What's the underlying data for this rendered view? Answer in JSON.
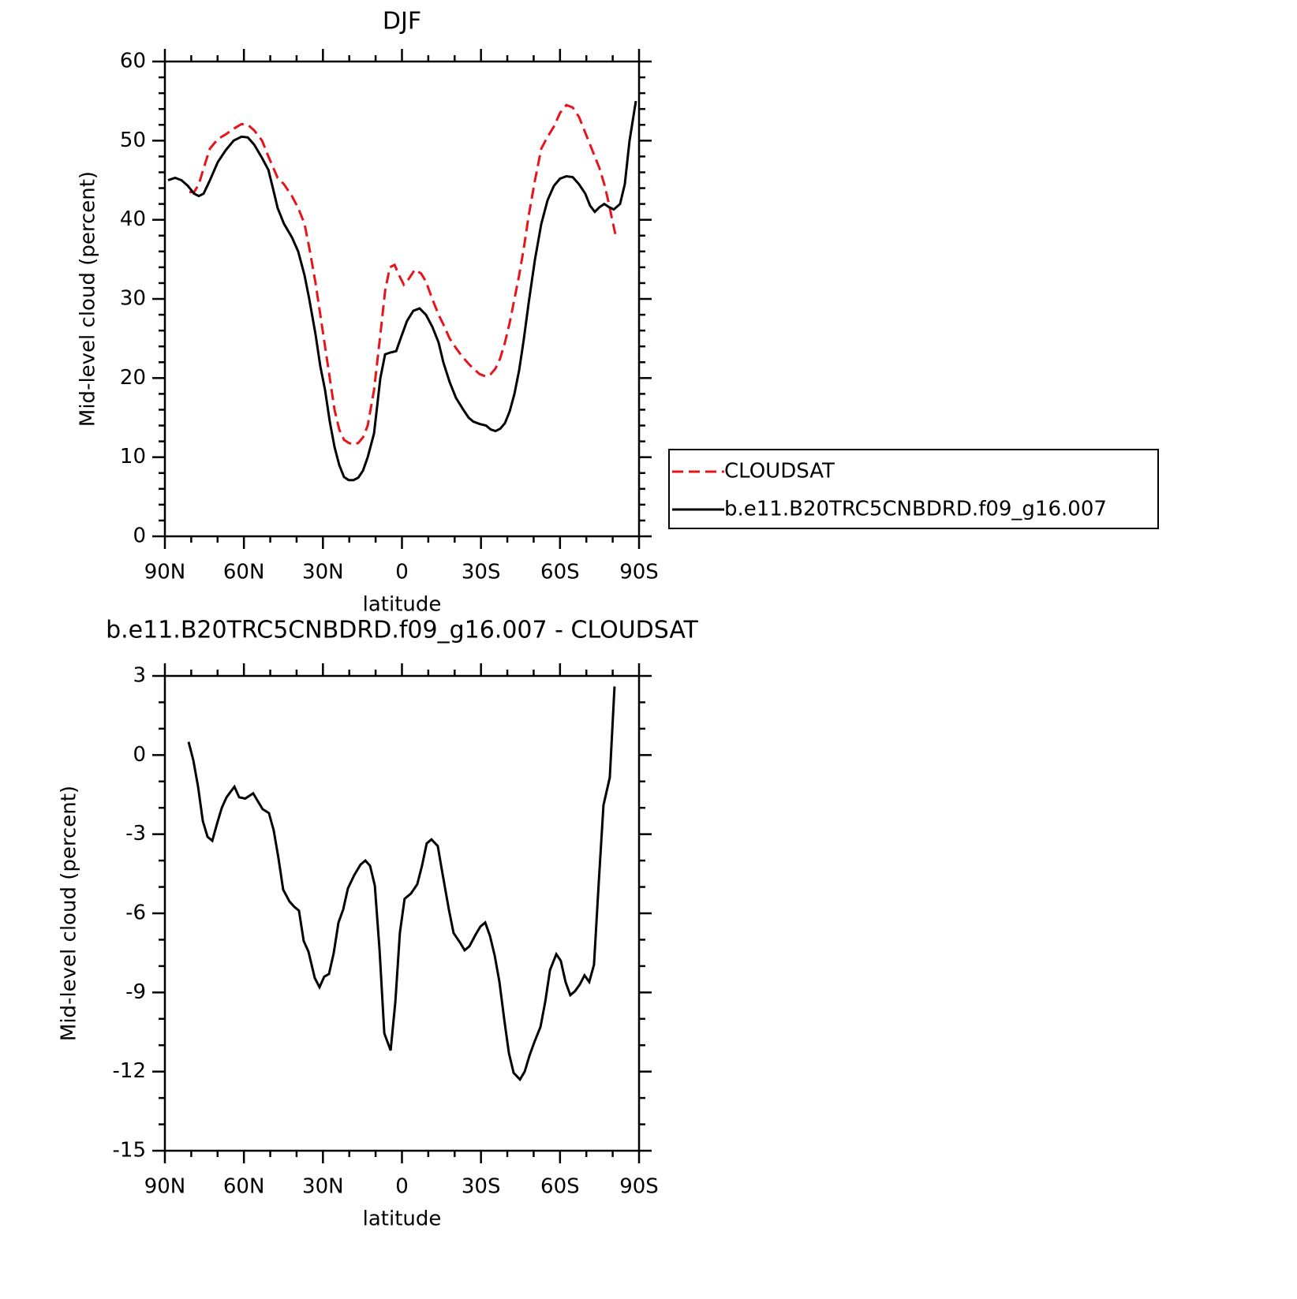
{
  "chart_data": [
    {
      "type": "line",
      "title": "DJF",
      "x_label": "latitude",
      "y_label": "Mid-level cloud (percent)",
      "xlim": [
        90,
        -90
      ],
      "xticks": [
        {
          "value": 90,
          "label": "90N"
        },
        {
          "value": 60,
          "label": "60N"
        },
        {
          "value": 30,
          "label": "30N"
        },
        0,
        {
          "value": -30,
          "label": "30S"
        },
        {
          "value": -60,
          "label": "60S"
        },
        {
          "value": -90,
          "label": "90S"
        }
      ],
      "ylim": [
        0,
        60
      ],
      "yticks": [
        0,
        10,
        20,
        30,
        40,
        50,
        60
      ],
      "x_minor_divisions": 3,
      "y_minor_divisions": 5,
      "legend": "right",
      "series": [
        {
          "name": "CLOUDSAT",
          "color": "#e8141c",
          "style": "dashed",
          "x": [
            80.7,
            78.9,
            77.1,
            75.3,
            72.9,
            69.9,
            66.9,
            63.9,
            60.9,
            58.5,
            56.1,
            53.1,
            50.7,
            47.2,
            44.8,
            41.8,
            39.4,
            37.0,
            35.2,
            32.8,
            31.0,
            29.2,
            27.4,
            25.6,
            23.8,
            22.0,
            20.2,
            18.4,
            16.6,
            14.8,
            13.0,
            10.6,
            8.2,
            6.4,
            4.6,
            2.8,
            1.1,
            -0.7,
            -2.5,
            -4.9,
            -7.3,
            -9.1,
            -11.5,
            -13.9,
            -15.7,
            -18.1,
            -20.5,
            -22.9,
            -25.3,
            -27.1,
            -29.5,
            -31.9,
            -33.7,
            -35.5,
            -37.3,
            -39.1,
            -40.9,
            -42.7,
            -44.5,
            -46.3,
            -48.1,
            -50.5,
            -52.9,
            -55.3,
            -57.7,
            -60.0,
            -62.4,
            -64.8,
            -67.2,
            -69.6,
            -71.4,
            -73.2,
            -75.0,
            -76.8,
            -78.6,
            -79.8,
            -81.0
          ],
          "values": [
            43.5,
            43.5,
            44.5,
            46.5,
            49,
            50.2,
            50.8,
            51.5,
            52.1,
            52.0,
            51.3,
            50,
            48,
            45.3,
            44.5,
            43,
            41.5,
            39.5,
            36.5,
            32,
            28,
            24,
            20,
            16,
            13.5,
            12.2,
            11.8,
            11.6,
            11.8,
            12.5,
            14.0,
            18.5,
            25.5,
            31,
            34,
            34.3,
            33,
            31.8,
            32.5,
            33.7,
            33.2,
            32.2,
            30,
            28,
            26.8,
            25,
            23.8,
            22.7,
            21.8,
            21.2,
            20.5,
            20.2,
            20.5,
            21.2,
            22.5,
            24.5,
            27,
            30,
            33,
            36.5,
            40.5,
            45,
            49,
            50.5,
            51.8,
            53.5,
            54.5,
            54.2,
            53,
            51,
            49.5,
            48,
            46.5,
            44.5,
            42,
            40,
            38.2
          ]
        },
        {
          "name": "b.e11.B20TRC5CNBDRD.f09_g16.007",
          "color": "#000000",
          "style": "solid",
          "x": [
            88.8,
            86.1,
            83.7,
            81.3,
            78.9,
            77.1,
            75.3,
            72.9,
            69.9,
            66.9,
            63.9,
            60.9,
            58.5,
            56.1,
            53.1,
            50.7,
            49.0,
            47.2,
            44.8,
            41.8,
            39.4,
            37.0,
            35.2,
            32.8,
            31.0,
            29.2,
            27.4,
            25.6,
            23.8,
            22.0,
            20.2,
            18.4,
            16.6,
            14.8,
            13.0,
            10.6,
            9.4,
            8.2,
            6.4,
            4.6,
            2.2,
            0.5,
            -1.9,
            -4.3,
            -6.7,
            -9.1,
            -11.5,
            -13.9,
            -15.7,
            -18.1,
            -20.5,
            -22.9,
            -25.3,
            -27.1,
            -29.5,
            -31.9,
            -33.7,
            -35.5,
            -37.3,
            -39.1,
            -40.9,
            -42.7,
            -44.5,
            -46.3,
            -48.1,
            -50.5,
            -52.9,
            -55.3,
            -57.7,
            -60.0,
            -62.4,
            -64.8,
            -67.2,
            -69.6,
            -71.4,
            -73.2,
            -75.0,
            -76.8,
            -78.6,
            -80.4,
            -82.8,
            -84.6,
            -86.4,
            -88.8
          ],
          "values": [
            45.0,
            45.3,
            45.0,
            44.3,
            43.3,
            43.0,
            43.3,
            45.0,
            47.3,
            48.8,
            50.0,
            50.5,
            50.4,
            49.5,
            47.8,
            46.3,
            44.0,
            41.5,
            39.5,
            37.8,
            36.0,
            33.0,
            30.0,
            25.5,
            21.5,
            18.5,
            14.5,
            11.3,
            9.0,
            7.5,
            7.1,
            7.1,
            7.4,
            8.3,
            10.0,
            13.0,
            16.5,
            20.0,
            23.0,
            23.2,
            23.4,
            25.0,
            27.2,
            28.5,
            28.8,
            28.0,
            26.5,
            24.5,
            22.0,
            19.5,
            17.5,
            16.2,
            15.0,
            14.5,
            14.2,
            14.0,
            13.5,
            13.3,
            13.6,
            14.3,
            15.8,
            18.0,
            21.0,
            25.0,
            29.5,
            35.0,
            39.5,
            42.5,
            44.3,
            45.2,
            45.5,
            45.4,
            44.5,
            43.3,
            41.8,
            41.0,
            41.6,
            42.0,
            41.6,
            41.3,
            42.0,
            44.5,
            50.0,
            55.0
          ]
        }
      ]
    },
    {
      "type": "line",
      "title": "b.e11.B20TRC5CNBDRD.f09_g16.007 - CLOUDSAT",
      "x_label": "latitude",
      "y_label": "Mid-level cloud (percent)",
      "xlim": [
        90,
        -90
      ],
      "xticks": [
        {
          "value": 90,
          "label": "90N"
        },
        {
          "value": 60,
          "label": "60N"
        },
        {
          "value": 30,
          "label": "30N"
        },
        0,
        {
          "value": -30,
          "label": "30S"
        },
        {
          "value": -60,
          "label": "60S"
        },
        {
          "value": -90,
          "label": "90S"
        }
      ],
      "ylim": [
        -15,
        3
      ],
      "yticks": [
        -15,
        -12,
        -9,
        -6,
        -3,
        0,
        3
      ],
      "x_minor_divisions": 3,
      "y_minor_divisions": 3,
      "series": [
        {
          "color": "#000000",
          "style": "solid",
          "x": [
            81.0,
            79.2,
            77.4,
            75.6,
            73.8,
            72.0,
            70.2,
            68.4,
            66.6,
            63.6,
            61.8,
            59.5,
            56.5,
            54.7,
            52.9,
            50.5,
            48.7,
            46.9,
            45.1,
            42.7,
            40.9,
            39.1,
            37.3,
            35.5,
            33.1,
            31.3,
            29.5,
            27.7,
            25.9,
            24.1,
            22.3,
            20.5,
            18.1,
            15.7,
            13.9,
            12.1,
            10.3,
            8.5,
            6.7,
            4.3,
            2.5,
            0.8,
            -1.0,
            -3.4,
            -5.8,
            -7.6,
            -9.4,
            -11.2,
            -13.6,
            -15.4,
            -17.8,
            -19.6,
            -22.0,
            -23.8,
            -25.6,
            -28.0,
            -29.8,
            -31.6,
            -33.4,
            -35.2,
            -37.0,
            -38.8,
            -40.6,
            -42.4,
            -44.8,
            -46.6,
            -48.4,
            -50.2,
            -52.6,
            -54.4,
            -56.2,
            -58.6,
            -60.3,
            -62.1,
            -63.9,
            -65.7,
            -67.5,
            -69.3,
            -71.1,
            -72.9,
            -74.7,
            -76.5,
            -78.9,
            -80.7
          ],
          "values": [
            0.5,
            -0.2,
            -1.2,
            -2.5,
            -3.1,
            -3.25,
            -2.6,
            -2.0,
            -1.6,
            -1.2,
            -1.6,
            -1.65,
            -1.45,
            -1.75,
            -2.05,
            -2.2,
            -2.85,
            -3.9,
            -5.1,
            -5.55,
            -5.75,
            -5.9,
            -7.05,
            -7.45,
            -8.45,
            -8.8,
            -8.4,
            -8.3,
            -7.5,
            -6.35,
            -5.85,
            -5.05,
            -4.55,
            -4.15,
            -4.0,
            -4.2,
            -4.95,
            -7.4,
            -10.55,
            -11.2,
            -9.35,
            -6.75,
            -5.45,
            -5.25,
            -4.9,
            -4.2,
            -3.35,
            -3.2,
            -3.45,
            -4.5,
            -5.85,
            -6.75,
            -7.1,
            -7.4,
            -7.25,
            -6.8,
            -6.5,
            -6.35,
            -6.85,
            -7.6,
            -8.6,
            -10.0,
            -11.3,
            -12.05,
            -12.3,
            -12.0,
            -11.4,
            -10.9,
            -10.3,
            -9.35,
            -8.15,
            -7.55,
            -7.8,
            -8.6,
            -9.1,
            -8.95,
            -8.7,
            -8.35,
            -8.6,
            -7.95,
            -4.85,
            -1.9,
            -0.85,
            2.6
          ]
        }
      ]
    }
  ]
}
